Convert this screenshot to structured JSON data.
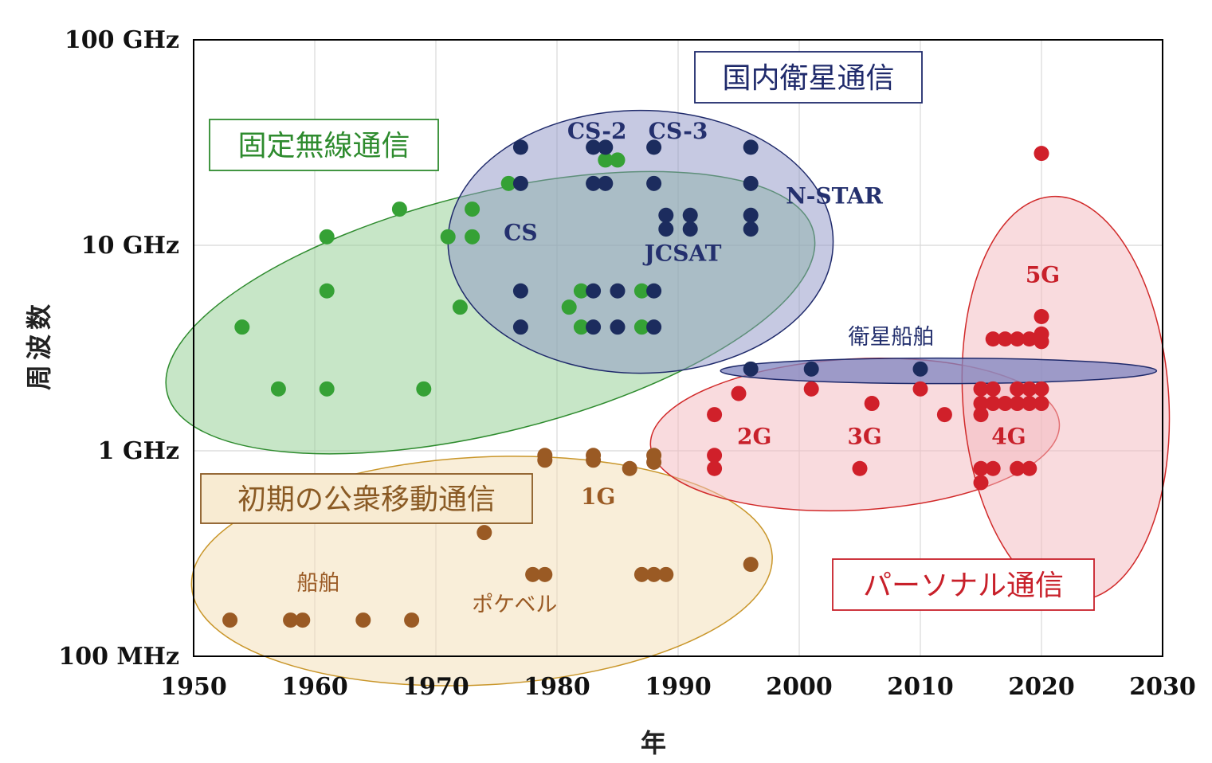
{
  "chart_data": {
    "type": "scatter",
    "xlabel": "年",
    "ylabel": "周波数",
    "xlim": [
      1950,
      2030
    ],
    "ylim_ghz": [
      0.1,
      100
    ],
    "yscale": "log",
    "x_ticks": [
      "1950",
      "1960",
      "1970",
      "1980",
      "1990",
      "2000",
      "2010",
      "2020",
      "2030"
    ],
    "y_ticks": [
      {
        "value": 100,
        "label": "100 GHz"
      },
      {
        "value": 10,
        "label": "10 GHz"
      },
      {
        "value": 1,
        "label": "1 GHz"
      },
      {
        "value": 0.1,
        "label": "100 MHz"
      }
    ],
    "grid": true,
    "regions": [
      {
        "name": "固定無線通信",
        "color": "#2e8b2e",
        "fill": "#8fce8f",
        "cx": 1974.5,
        "cy_ghz": 4.7,
        "rx_years": 27.5,
        "angle": -14
      },
      {
        "name": "国内衛星通信",
        "color": "#1f2a6b",
        "fill": "#8e93c6",
        "cx": 1986.9,
        "cy_ghz": 10.4,
        "rx_years": 15.9,
        "angle": 0
      },
      {
        "name": "初期の公衆移動通信",
        "color": "#c9962a",
        "fill": "#f3ddb3",
        "cx": 1973.8,
        "cy_ghz": 0.26,
        "rx_years": 24,
        "angle": -3
      },
      {
        "name": "衛星船舶",
        "color": "#1f2a6b",
        "fill": "#7d84c0",
        "cx": 2011.5,
        "cy_ghz": 2.45,
        "rx_years": 18,
        "angle": 0
      },
      {
        "name": "パーソナル通信",
        "color": "#d12a2a",
        "fill": "#f4b7bd",
        "cx": 2004.6,
        "cy_ghz": 1.2,
        "rx_years": 16.9,
        "angle": -3
      },
      {
        "name": "5G",
        "color": "#d12a2a",
        "fill": "#f4b7bd",
        "cx": 2022,
        "cy_ghz": 1.8,
        "rx_years": 8.5,
        "angle": -4
      }
    ],
    "annotations": [
      {
        "text": "CS-2",
        "x": 1983.3,
        "y_ghz": 33,
        "series": "satellite"
      },
      {
        "text": "CS-3",
        "x": 1990,
        "y_ghz": 33,
        "series": "satellite"
      },
      {
        "text": "CS",
        "x": 1977,
        "y_ghz": 10.6,
        "series": "satellite"
      },
      {
        "text": "JCSAT",
        "x": 1990.4,
        "y_ghz": 8.4,
        "series": "satellite"
      },
      {
        "text": "N-STAR",
        "x": 2002.9,
        "y_ghz": 16,
        "series": "satellite"
      },
      {
        "text": "衛星船舶",
        "x": 2007.6,
        "y_ghz": 3.3,
        "series": "satellite",
        "jp": true
      },
      {
        "text": "5G",
        "x": 2020.1,
        "y_ghz": 6.6,
        "series": "personal"
      },
      {
        "text": "2G",
        "x": 1996.3,
        "y_ghz": 1.08,
        "series": "personal"
      },
      {
        "text": "3G",
        "x": 2005.4,
        "y_ghz": 1.08,
        "series": "personal"
      },
      {
        "text": "4G",
        "x": 2017.3,
        "y_ghz": 1.08,
        "series": "personal"
      },
      {
        "text": "1G",
        "x": 1983.4,
        "y_ghz": 0.55,
        "series": "mobile"
      },
      {
        "text": "船舶",
        "x": 1960.3,
        "y_ghz": 0.21,
        "series": "mobile",
        "jp": true
      },
      {
        "text": "ポケベル",
        "x": 1976.5,
        "y_ghz": 0.165,
        "series": "mobile",
        "jp": true
      }
    ],
    "series": [
      {
        "name": "固定無線通信",
        "color": "#35a135",
        "points": [
          [
            1954,
            4
          ],
          [
            1957,
            2
          ],
          [
            1961,
            2
          ],
          [
            1961,
            6
          ],
          [
            1961,
            11
          ],
          [
            1967,
            15
          ],
          [
            1969,
            2
          ],
          [
            1971,
            11
          ],
          [
            1972,
            5
          ],
          [
            1973,
            11
          ],
          [
            1973,
            15
          ],
          [
            1976,
            20
          ],
          [
            1981,
            5
          ],
          [
            1982,
            6
          ],
          [
            1982,
            4
          ],
          [
            1984,
            26
          ],
          [
            1985,
            26
          ],
          [
            1987,
            6
          ],
          [
            1987,
            4
          ]
        ]
      },
      {
        "name": "国内衛星通信",
        "color": "#1c2c5e",
        "points": [
          [
            1977,
            30
          ],
          [
            1977,
            20
          ],
          [
            1977,
            6
          ],
          [
            1977,
            4
          ],
          [
            1983,
            30
          ],
          [
            1984,
            30
          ],
          [
            1983,
            20
          ],
          [
            1984,
            20
          ],
          [
            1983,
            6
          ],
          [
            1983,
            4
          ],
          [
            1985,
            6
          ],
          [
            1985,
            4
          ],
          [
            1988,
            30
          ],
          [
            1988,
            20
          ],
          [
            1988,
            6
          ],
          [
            1988,
            4
          ],
          [
            1989,
            14
          ],
          [
            1989,
            12
          ],
          [
            1991,
            14
          ],
          [
            1991,
            12
          ],
          [
            1996,
            30
          ],
          [
            1996,
            20
          ],
          [
            1996,
            14
          ],
          [
            1996,
            12
          ]
        ]
      },
      {
        "name": "衛星船舶",
        "color": "#1c2c5e",
        "points": [
          [
            1996,
            2.5
          ],
          [
            2001,
            2.5
          ],
          [
            2010,
            2.5
          ]
        ]
      },
      {
        "name": "初期の公衆移動通信",
        "color": "#9a5a24",
        "points": [
          [
            1953,
            0.15
          ],
          [
            1958,
            0.15
          ],
          [
            1959,
            0.15
          ],
          [
            1964,
            0.15
          ],
          [
            1968,
            0.15
          ],
          [
            1974,
            0.4
          ],
          [
            1978,
            0.25
          ],
          [
            1979,
            0.25
          ],
          [
            1979,
            0.9
          ],
          [
            1979,
            0.95
          ],
          [
            1983,
            0.9
          ],
          [
            1983,
            0.95
          ],
          [
            1986,
            0.82
          ],
          [
            1987,
            0.25
          ],
          [
            1988,
            0.25
          ],
          [
            1989,
            0.25
          ],
          [
            1988,
            0.88
          ],
          [
            1988,
            0.95
          ],
          [
            1996,
            0.28
          ]
        ]
      },
      {
        "name": "パーソナル通信",
        "color": "#d0202a",
        "points": [
          [
            1993,
            1.5
          ],
          [
            1993,
            0.95
          ],
          [
            1993,
            0.82
          ],
          [
            1995,
            1.9
          ],
          [
            2001,
            2.0
          ],
          [
            2005,
            0.82
          ],
          [
            2006,
            1.7
          ],
          [
            2010,
            2.0
          ],
          [
            2012,
            1.5
          ],
          [
            2015,
            2.0
          ],
          [
            2015,
            1.7
          ],
          [
            2015,
            1.5
          ],
          [
            2015,
            0.82
          ],
          [
            2015,
            0.7
          ],
          [
            2016,
            2.0
          ],
          [
            2016,
            1.7
          ],
          [
            2016,
            0.82
          ],
          [
            2016,
            3.5
          ],
          [
            2017,
            3.5
          ],
          [
            2017,
            1.7
          ],
          [
            2018,
            3.5
          ],
          [
            2018,
            2.0
          ],
          [
            2018,
            1.7
          ],
          [
            2018,
            0.82
          ],
          [
            2019,
            3.5
          ],
          [
            2019,
            2.0
          ],
          [
            2019,
            1.7
          ],
          [
            2019,
            0.82
          ],
          [
            2020,
            28
          ],
          [
            2020,
            4.5
          ],
          [
            2020,
            3.7
          ],
          [
            2020,
            3.4
          ],
          [
            2020,
            2.0
          ],
          [
            2020,
            1.7
          ]
        ]
      }
    ]
  }
}
